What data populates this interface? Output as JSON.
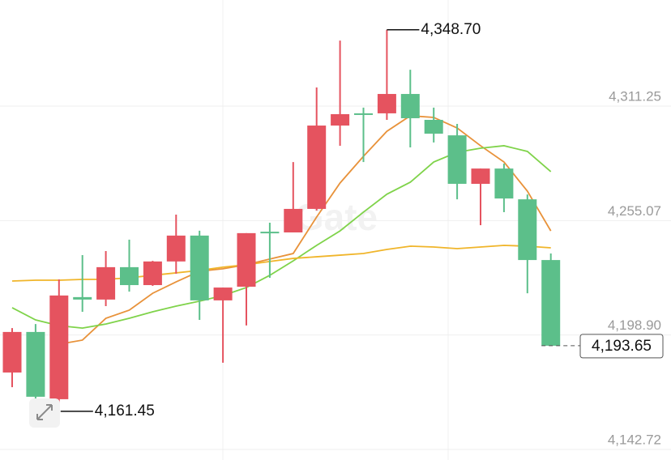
{
  "chart_data": {
    "type": "candlestick",
    "watermark": "Gate",
    "up_color": "#e5535f",
    "down_color": "#5cbf8a",
    "open": [
      4180.5,
      4200.4,
      4167.4,
      4217.5,
      4216.3,
      4232.2,
      4223.4,
      4235.0,
      4247.7,
      4215.9,
      4222.6,
      4249.6,
      4249.25,
      4260.8,
      4301.7,
      4307.7,
      4307.7,
      4317.2,
      4304.5,
      4296.9,
      4273.1,
      4280.6,
      4265.5,
      4235.7
    ],
    "high": [
      4202.3,
      4204.3,
      4226.2,
      4238.1,
      4240.1,
      4245.7,
      4235.3,
      4258.0,
      4250.1,
      4222.2,
      4248.9,
      4254.0,
      4283.8,
      4320.4,
      4343.4,
      4310.5,
      4348.7,
      4329.1,
      4310.5,
      4302.5,
      4280.6,
      4283.0,
      4267.9,
      4238.9
    ],
    "low": [
      4173.3,
      4166.6,
      4161.45,
      4210.3,
      4213.1,
      4220.2,
      4223.0,
      4229.0,
      4206.3,
      4185.3,
      4203.6,
      4227.0,
      4249.25,
      4260.0,
      4291.8,
      4283.8,
      4304.5,
      4291.0,
      4293.4,
      4265.5,
      4252.8,
      4259.2,
      4219.4,
      4193.65
    ],
    "close": [
      4200.4,
      4168.6,
      4218.3,
      4216.3,
      4232.2,
      4223.4,
      4235.0,
      4247.7,
      4215.9,
      4222.2,
      4248.9,
      4248.9,
      4260.8,
      4301.7,
      4307.3,
      4307.3,
      4317.2,
      4305.3,
      4297.7,
      4273.1,
      4280.6,
      4265.9,
      4235.7,
      4193.65
    ],
    "series": [
      {
        "color": "#e8923a",
        "values": [
          null,
          null,
          4194.4,
          4196.4,
          4207.1,
          4211.1,
          4219.4,
          4225.0,
          4230.2,
          4231.4,
          4233.4,
          4236.2,
          4238.9,
          4256.8,
          4273.5,
          4286.6,
          4298.9,
          4306.5,
          4305.7,
          4300.5,
          4291.8,
          4283.8,
          4269.5,
          4250.0
        ]
      },
      {
        "color": "#7fd34a",
        "values": [
          4212.3,
          4206.3,
          4203.5,
          4202.3,
          4204.3,
          4207.1,
          4210.3,
          4213.1,
          4215.5,
          4218.3,
          4222.2,
          4228.2,
          4235.3,
          4242.9,
          4250.0,
          4259.2,
          4268.0,
          4273.9,
          4283.8,
          4288.6,
          4290.6,
          4291.8,
          4289.0,
          4279.1
        ]
      },
      {
        "color": "#f0b52a",
        "values": [
          4225.4,
          4225.8,
          4225.8,
          4226.2,
          4226.2,
          4227.0,
          4228.2,
          4229.4,
          4230.6,
          4232.2,
          4233.4,
          4235.0,
          4236.5,
          4237.3,
          4238.1,
          4238.9,
          4240.9,
          4242.5,
          4242.1,
          4241.3,
          4242.1,
          4242.9,
          4242.5,
          4241.7
        ]
      }
    ],
    "annotations": [
      {
        "kind": "high",
        "value": 4348.7,
        "label": "4,348.70"
      },
      {
        "kind": "low",
        "value": 4161.45,
        "label": "4,161.45"
      },
      {
        "kind": "last",
        "value": 4193.65,
        "label": "4,193.65"
      }
    ],
    "ylim": [
      4137.56,
      4363.32
    ],
    "yticks": [
      {
        "value": 4311.25,
        "label": "4,311.25"
      },
      {
        "value": 4255.07,
        "label": "4,255.07"
      },
      {
        "value": 4198.9,
        "label": "4,198.90"
      },
      {
        "value": 4142.72,
        "label": "4,142.72"
      }
    ],
    "grid": true
  }
}
